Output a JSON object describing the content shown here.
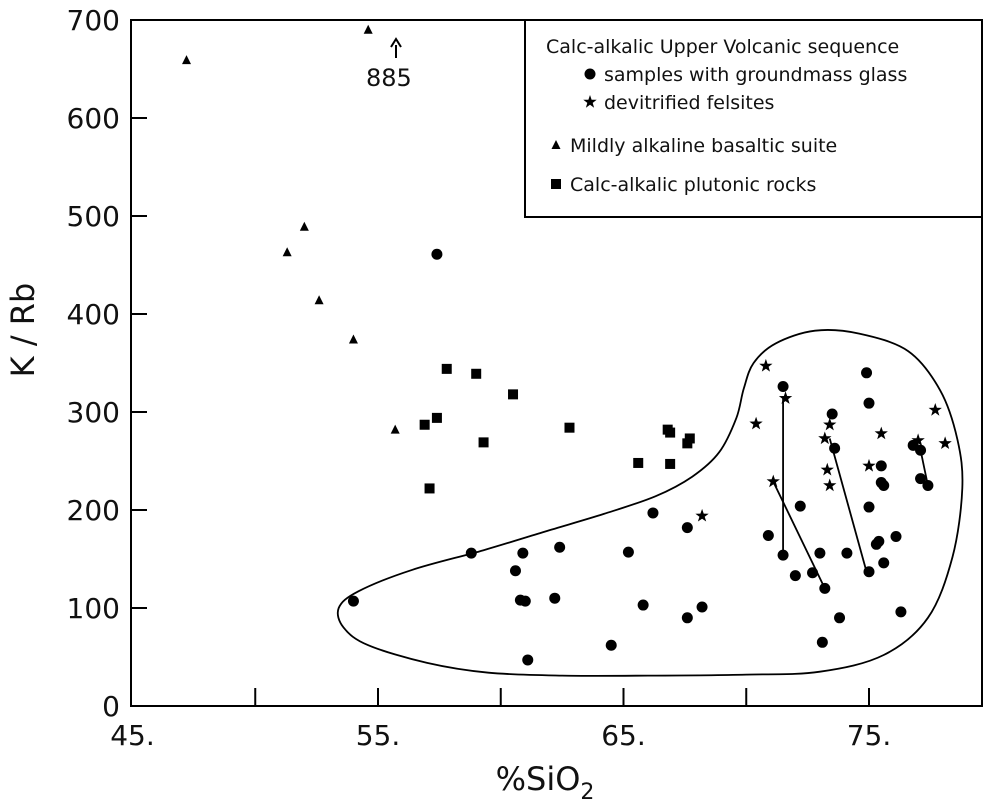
{
  "chart_data": {
    "type": "scatter",
    "xlabel": "%SiO",
    "xlabel_subscript": "2",
    "ylabel": "K / Rb",
    "xlim": [
      45,
      80
    ],
    "ylim": [
      0,
      700
    ],
    "x_ticks": [
      {
        "value": 45,
        "label": "45."
      },
      {
        "value": 50,
        "label": ""
      },
      {
        "value": 55,
        "label": "55."
      },
      {
        "value": 60,
        "label": ""
      },
      {
        "value": 65,
        "label": "65."
      },
      {
        "value": 70,
        "label": ""
      },
      {
        "value": 75,
        "label": "75."
      }
    ],
    "y_ticks": [
      {
        "value": 0,
        "label": "0"
      },
      {
        "value": 100,
        "label": "100"
      },
      {
        "value": 200,
        "label": "200"
      },
      {
        "value": 300,
        "label": "300"
      },
      {
        "value": 400,
        "label": "400"
      },
      {
        "value": 500,
        "label": "500"
      },
      {
        "value": 600,
        "label": "600"
      },
      {
        "value": 700,
        "label": "700"
      }
    ],
    "grid": false,
    "legend_position": "top-right",
    "legend": {
      "heading": "Calc-alkalic Upper Volcanic sequence",
      "entries": [
        {
          "marker": "circle",
          "label": "samples with groundmass glass",
          "indent": true
        },
        {
          "marker": "star",
          "label": "devitrified felsites",
          "indent": true
        },
        {
          "marker": "triangle",
          "label": "Mildly alkaline basaltic suite",
          "indent": false
        },
        {
          "marker": "square",
          "label": "Calc-alkalic plutonic rocks",
          "indent": false
        }
      ]
    },
    "annotation": {
      "text": "885",
      "x": 54.6,
      "y": 690,
      "note_arrow": "up"
    },
    "series": [
      {
        "marker": "circle",
        "points": [
          [
            54.0,
            107
          ],
          [
            57.4,
            461
          ],
          [
            58.8,
            156
          ],
          [
            60.6,
            138
          ],
          [
            60.8,
            108
          ],
          [
            60.9,
            156
          ],
          [
            61.0,
            107
          ],
          [
            61.1,
            47
          ],
          [
            62.2,
            110
          ],
          [
            62.4,
            162
          ],
          [
            64.5,
            62
          ],
          [
            65.2,
            157
          ],
          [
            65.8,
            103
          ],
          [
            66.2,
            197
          ],
          [
            67.6,
            182
          ],
          [
            67.6,
            90
          ],
          [
            68.2,
            101
          ],
          [
            70.9,
            174
          ],
          [
            71.5,
            326
          ],
          [
            71.5,
            154
          ],
          [
            72.0,
            133
          ],
          [
            72.2,
            204
          ],
          [
            72.7,
            136
          ],
          [
            73.0,
            156
          ],
          [
            73.1,
            65
          ],
          [
            73.2,
            120
          ],
          [
            73.5,
            298
          ],
          [
            73.6,
            263
          ],
          [
            73.8,
            90
          ],
          [
            74.1,
            156
          ],
          [
            74.9,
            340
          ],
          [
            75.0,
            309
          ],
          [
            75.0,
            203
          ],
          [
            75.0,
            137
          ],
          [
            75.3,
            165
          ],
          [
            75.4,
            168
          ],
          [
            75.5,
            245
          ],
          [
            75.5,
            228
          ],
          [
            75.6,
            225
          ],
          [
            75.6,
            146
          ],
          [
            76.1,
            173
          ],
          [
            76.3,
            96
          ],
          [
            76.8,
            266
          ],
          [
            77.1,
            261
          ],
          [
            77.1,
            232
          ],
          [
            77.4,
            225
          ]
        ]
      },
      {
        "marker": "star",
        "points": [
          [
            68.2,
            194
          ],
          [
            70.4,
            288
          ],
          [
            70.8,
            347
          ],
          [
            71.1,
            229
          ],
          [
            71.6,
            314
          ],
          [
            73.2,
            273
          ],
          [
            73.3,
            241
          ],
          [
            73.4,
            287
          ],
          [
            73.4,
            225
          ],
          [
            75.0,
            245
          ],
          [
            75.5,
            278
          ],
          [
            77.0,
            271
          ],
          [
            77.7,
            302
          ],
          [
            78.1,
            268
          ]
        ]
      },
      {
        "marker": "triangle",
        "points": [
          [
            47.2,
            659
          ],
          [
            51.3,
            463
          ],
          [
            52.0,
            489
          ],
          [
            52.6,
            414
          ],
          [
            54.0,
            374
          ],
          [
            54.6,
            690
          ],
          [
            55.7,
            282
          ]
        ]
      },
      {
        "marker": "square",
        "points": [
          [
            56.9,
            287
          ],
          [
            57.1,
            222
          ],
          [
            57.4,
            294
          ],
          [
            57.8,
            344
          ],
          [
            59.0,
            339
          ],
          [
            59.3,
            269
          ],
          [
            60.5,
            318
          ],
          [
            62.8,
            284
          ],
          [
            65.6,
            248
          ],
          [
            66.8,
            282
          ],
          [
            66.9,
            279
          ],
          [
            66.9,
            247
          ],
          [
            67.6,
            268
          ],
          [
            67.7,
            273
          ]
        ]
      }
    ],
    "tie_lines": [
      [
        [
          71.5,
          314
        ],
        [
          71.5,
          154
        ]
      ],
      [
        [
          71.1,
          229
        ],
        [
          73.2,
          120
        ]
      ],
      [
        [
          73.4,
          273
        ],
        [
          74.9,
          137
        ]
      ],
      [
        [
          77.1,
          261
        ],
        [
          77.4,
          225
        ]
      ]
    ],
    "field_outline": [
      [
        70.3,
        350
      ],
      [
        71.2,
        370
      ],
      [
        72.8,
        383
      ],
      [
        74.6,
        380
      ],
      [
        76.6,
        362
      ],
      [
        77.9,
        322
      ],
      [
        78.6,
        272
      ],
      [
        78.8,
        222
      ],
      [
        78.4,
        152
      ],
      [
        77.4,
        90
      ],
      [
        75.6,
        52
      ],
      [
        73.0,
        35
      ],
      [
        70.0,
        32
      ],
      [
        66.0,
        31
      ],
      [
        62.5,
        31
      ],
      [
        59.5,
        34
      ],
      [
        57.0,
        44
      ],
      [
        54.6,
        62
      ],
      [
        53.6,
        80
      ],
      [
        53.4,
        100
      ],
      [
        54.2,
        117
      ],
      [
        56.4,
        139
      ],
      [
        59.3,
        159
      ],
      [
        61.8,
        178
      ],
      [
        64.2,
        196
      ],
      [
        66.3,
        214
      ],
      [
        67.8,
        234
      ],
      [
        68.9,
        259
      ],
      [
        69.6,
        294
      ],
      [
        69.9,
        324
      ]
    ]
  }
}
